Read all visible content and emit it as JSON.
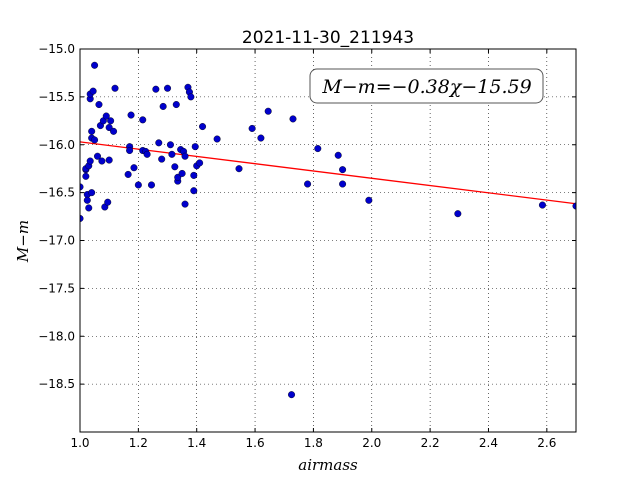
{
  "chart_data": {
    "type": "scatter",
    "title": "2021-11-30_211943",
    "xlabel": "airmass",
    "ylabel": "M−m",
    "xlim": [
      1.0,
      2.7
    ],
    "ylim": [
      -15.0,
      -19.0
    ],
    "y_inverted": true,
    "grid": true,
    "xticks": [
      1.0,
      1.2,
      1.4,
      1.6,
      1.8,
      2.0,
      2.2,
      2.4,
      2.6
    ],
    "xtick_labels": [
      "1.0",
      "1.2",
      "1.4",
      "1.6",
      "1.8",
      "2.0",
      "2.2",
      "2.4",
      "2.6"
    ],
    "yticks": [
      -15.0,
      -15.5,
      -16.0,
      -16.5,
      -17.0,
      -17.5,
      -18.0,
      -18.5
    ],
    "ytick_labels": [
      "−15.0",
      "−15.5",
      "−16.0",
      "−16.5",
      "−17.0",
      "−17.5",
      "−18.0",
      "−18.5"
    ],
    "annotation": "M−m=−0.38χ−15.59",
    "fit": {
      "slope": -0.38,
      "intercept": -15.59,
      "x_range": [
        1.0,
        2.7
      ],
      "color": "#ff0000"
    },
    "marker_color": "#0000cc",
    "points": [
      [
        1.0,
        -16.77
      ],
      [
        1.0,
        -16.44
      ],
      [
        1.02,
        -16.26
      ],
      [
        1.02,
        -16.25
      ],
      [
        1.02,
        -16.33
      ],
      [
        1.025,
        -16.52
      ],
      [
        1.025,
        -16.58
      ],
      [
        1.03,
        -16.66
      ],
      [
        1.03,
        -16.22
      ],
      [
        1.035,
        -16.17
      ],
      [
        1.04,
        -16.5
      ],
      [
        1.035,
        -15.52
      ],
      [
        1.035,
        -15.47
      ],
      [
        1.04,
        -15.86
      ],
      [
        1.04,
        -15.93
      ],
      [
        1.05,
        -15.95
      ],
      [
        1.045,
        -15.44
      ],
      [
        1.05,
        -15.17
      ],
      [
        1.06,
        -16.12
      ],
      [
        1.065,
        -15.58
      ],
      [
        1.07,
        -15.8
      ],
      [
        1.075,
        -16.17
      ],
      [
        1.08,
        -15.75
      ],
      [
        1.085,
        -16.65
      ],
      [
        1.09,
        -15.7
      ],
      [
        1.095,
        -16.6
      ],
      [
        1.1,
        -15.82
      ],
      [
        1.1,
        -16.16
      ],
      [
        1.105,
        -15.75
      ],
      [
        1.115,
        -15.86
      ],
      [
        1.12,
        -15.41
      ],
      [
        1.165,
        -16.31
      ],
      [
        1.17,
        -16.02
      ],
      [
        1.17,
        -16.06
      ],
      [
        1.175,
        -15.69
      ],
      [
        1.185,
        -16.24
      ],
      [
        1.2,
        -16.42
      ],
      [
        1.215,
        -16.06
      ],
      [
        1.215,
        -15.74
      ],
      [
        1.225,
        -16.07
      ],
      [
        1.23,
        -16.1
      ],
      [
        1.245,
        -16.42
      ],
      [
        1.26,
        -15.42
      ],
      [
        1.27,
        -15.98
      ],
      [
        1.28,
        -16.15
      ],
      [
        1.285,
        -15.6
      ],
      [
        1.3,
        -15.41
      ],
      [
        1.31,
        -16.0
      ],
      [
        1.315,
        -16.1
      ],
      [
        1.325,
        -16.23
      ],
      [
        1.33,
        -15.58
      ],
      [
        1.335,
        -16.38
      ],
      [
        1.335,
        -16.34
      ],
      [
        1.345,
        -16.05
      ],
      [
        1.35,
        -16.3
      ],
      [
        1.355,
        -16.07
      ],
      [
        1.36,
        -16.12
      ],
      [
        1.36,
        -16.62
      ],
      [
        1.37,
        -15.4
      ],
      [
        1.375,
        -15.45
      ],
      [
        1.38,
        -15.5
      ],
      [
        1.39,
        -16.32
      ],
      [
        1.39,
        -16.48
      ],
      [
        1.395,
        -16.02
      ],
      [
        1.4,
        -16.22
      ],
      [
        1.41,
        -16.19
      ],
      [
        1.42,
        -15.81
      ],
      [
        1.47,
        -15.94
      ],
      [
        1.545,
        -16.25
      ],
      [
        1.59,
        -15.83
      ],
      [
        1.62,
        -15.93
      ],
      [
        1.645,
        -15.65
      ],
      [
        1.725,
        -18.61
      ],
      [
        1.73,
        -15.73
      ],
      [
        1.78,
        -16.41
      ],
      [
        1.815,
        -16.04
      ],
      [
        1.885,
        -16.11
      ],
      [
        1.9,
        -16.41
      ],
      [
        1.9,
        -16.26
      ],
      [
        1.99,
        -16.58
      ],
      [
        2.295,
        -16.72
      ],
      [
        2.585,
        -16.63
      ],
      [
        2.7,
        -16.64
      ]
    ]
  }
}
